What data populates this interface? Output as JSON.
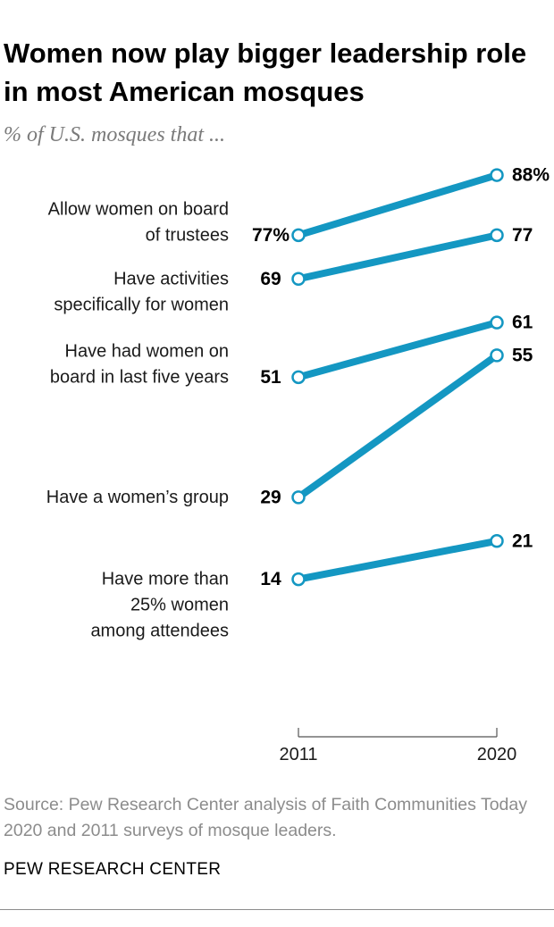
{
  "title": "Women now play bigger leadership role in most American mosques",
  "subtitle": "% of U.S. mosques that ...",
  "source": "Source: Pew Research Center analysis of Faith Communities Today 2020 and 2011 surveys of mosque leaders.",
  "organization": "PEW RESEARCH CENTER",
  "colors": {
    "line": "#1497c2",
    "marker_fill": "#ffffff",
    "text": "#000000",
    "muted": "#8c8c8c"
  },
  "chart_data": {
    "type": "line",
    "style": "slope",
    "x": [
      "2011",
      "2020"
    ],
    "title": "Women now play bigger leadership role in most American mosques",
    "subtitle": "% of U.S. mosques that ...",
    "y_unit": "% of U.S. mosques",
    "series": [
      {
        "name": "Allow women on board of trustees",
        "label_lines": [
          "Allow women on board",
          "of trustees"
        ],
        "values": [
          77,
          88
        ],
        "value_labels": [
          "77%",
          "88%"
        ]
      },
      {
        "name": "Have activities specifically for women",
        "label_lines": [
          "Have activities",
          "specifically for women"
        ],
        "values": [
          69,
          77
        ],
        "value_labels": [
          "69",
          "77"
        ]
      },
      {
        "name": "Have had women on board in last five years",
        "label_lines": [
          "Have had women on",
          "board in last five years"
        ],
        "values": [
          51,
          61
        ],
        "value_labels": [
          "51",
          "61"
        ]
      },
      {
        "name": "Have a women's group",
        "label_lines": [
          "Have a women’s group"
        ],
        "values": [
          29,
          55
        ],
        "value_labels": [
          "29",
          "55"
        ]
      },
      {
        "name": "Have more than 25% women among attendees",
        "label_lines": [
          "Have more than",
          "25% women",
          "among attendees"
        ],
        "values": [
          14,
          21
        ],
        "value_labels": [
          "14",
          "21"
        ]
      }
    ]
  }
}
